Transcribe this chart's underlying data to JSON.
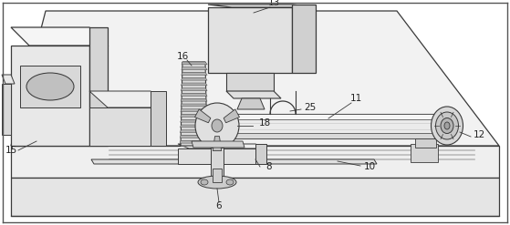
{
  "bg": "#ffffff",
  "lc": "#3a3a3a",
  "lc_light": "#888888",
  "fc_light": "#f2f2f2",
  "fc_mid": "#e0e0e0",
  "fc_dark": "#cccccc",
  "fc_darkest": "#b8b8b8",
  "figw": 5.59,
  "figh": 2.47,
  "dpi": 100,
  "border_lw": 1.0
}
